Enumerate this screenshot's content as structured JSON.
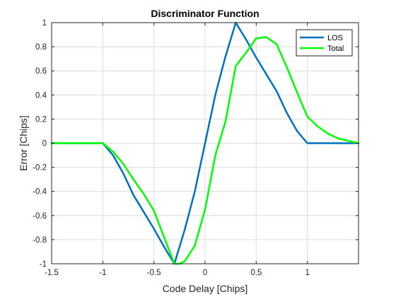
{
  "chart_data": {
    "type": "line",
    "title": "Discriminator Function",
    "xlabel": "Code Delay [Chips]",
    "ylabel": "Error [Chips]",
    "xlim": [
      -1.5,
      1.5
    ],
    "ylim": [
      -1,
      1
    ],
    "xticks": [
      -1.5,
      -1,
      -0.5,
      0,
      0.5,
      1
    ],
    "xtick_labels": [
      "-1.5",
      "-1",
      "-0.5",
      "0",
      "0.5",
      "1"
    ],
    "yticks": [
      -1,
      -0.8,
      -0.6,
      -0.4,
      -0.2,
      0,
      0.2,
      0.4,
      0.6,
      0.8,
      1
    ],
    "ytick_labels": [
      "-1",
      "-0.8",
      "-0.6",
      "-0.4",
      "-0.2",
      "0",
      "0.2",
      "0.4",
      "0.6",
      "0.8",
      "1"
    ],
    "grid": true,
    "legend_position": "top-right",
    "series": [
      {
        "name": "LOS",
        "color": "#0072BD",
        "x": [
          -1.5,
          -1.0,
          -0.9,
          -0.8,
          -0.7,
          -0.6,
          -0.5,
          -0.4,
          -0.3,
          -0.2,
          -0.1,
          0.0,
          0.1,
          0.2,
          0.3,
          0.4,
          0.5,
          0.6,
          0.7,
          0.8,
          0.9,
          1.0,
          1.5
        ],
        "y": [
          0,
          0,
          -0.1,
          -0.25,
          -0.43,
          -0.57,
          -0.71,
          -0.86,
          -1.0,
          -0.72,
          -0.4,
          0.0,
          0.4,
          0.72,
          1.0,
          0.86,
          0.71,
          0.57,
          0.43,
          0.25,
          0.1,
          0,
          0
        ]
      },
      {
        "name": "Total",
        "color": "#00FF00",
        "x": [
          -1.5,
          -1.0,
          -0.9,
          -0.8,
          -0.7,
          -0.6,
          -0.5,
          -0.4,
          -0.3,
          -0.25,
          -0.2,
          -0.1,
          0.0,
          0.1,
          0.2,
          0.3,
          0.4,
          0.5,
          0.6,
          0.7,
          0.8,
          0.9,
          1.0,
          1.1,
          1.2,
          1.3,
          1.4,
          1.5
        ],
        "y": [
          0,
          0,
          -0.07,
          -0.17,
          -0.3,
          -0.42,
          -0.56,
          -0.78,
          -1.0,
          -1.0,
          -0.98,
          -0.85,
          -0.55,
          -0.1,
          0.18,
          0.64,
          0.75,
          0.87,
          0.88,
          0.82,
          0.63,
          0.42,
          0.22,
          0.14,
          0.08,
          0.04,
          0.02,
          0.0
        ]
      }
    ]
  }
}
